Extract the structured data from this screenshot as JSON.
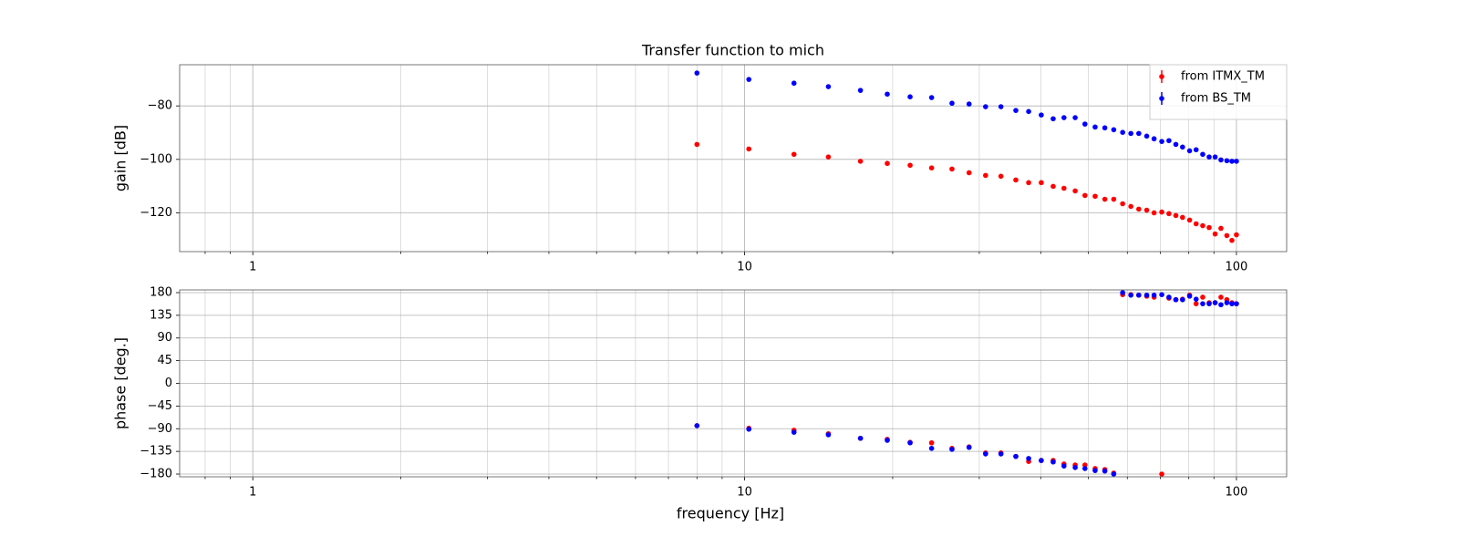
{
  "chart_data": [
    {
      "type": "scatter",
      "title": "Transfer function to mich",
      "ylabel": "gain [dB]",
      "log_x": true,
      "grid": true,
      "legend": "upper right",
      "xlim": [
        0.71,
        126.5
      ],
      "xticks": [
        1,
        10,
        100
      ],
      "xminorticks": [
        0.8,
        0.9,
        2,
        3,
        4,
        5,
        6,
        7,
        8,
        9,
        20,
        30,
        40,
        50,
        60,
        70,
        80,
        90
      ],
      "ylim": [
        -134.5,
        -64.6
      ],
      "yticks": [
        {
          "value": -120,
          "label": "−120"
        },
        {
          "value": -100,
          "label": "−100"
        },
        {
          "value": -80,
          "label": "−80"
        }
      ],
      "x": [
        8,
        10.2,
        12.6,
        14.8,
        17.2,
        19.5,
        21.7,
        24,
        26.4,
        28.6,
        30.9,
        33.2,
        35.6,
        37.8,
        40.1,
        42.4,
        44.6,
        47,
        49.2,
        51.6,
        54,
        56.3,
        58.7,
        61,
        63.3,
        65.7,
        68,
        70.5,
        72.9,
        75.3,
        77.7,
        80.3,
        82.8,
        85.4,
        88,
        90.5,
        93,
        95.6,
        97.9,
        100
      ],
      "series": [
        {
          "name": "from ITMX_TM",
          "color": "#ff0000",
          "values": [
            -94.4,
            -96.1,
            -98.1,
            -99.1,
            -100.7,
            -101.5,
            -102.2,
            -103.2,
            -103.6,
            -105.0,
            -106.0,
            -106.3,
            -107.7,
            -108.7,
            -108.7,
            -110.1,
            -110.8,
            -111.8,
            -113.5,
            -113.8,
            -114.9,
            -114.9,
            -116.6,
            -117.6,
            -118.6,
            -119.0,
            -120.0,
            -119.7,
            -120.3,
            -121.0,
            -121.7,
            -122.7,
            -124.1,
            -124.8,
            -125.5,
            -127.9,
            -125.8,
            -128.5,
            -130.3,
            -128.2
          ]
        },
        {
          "name": "from BS_TM",
          "color": "#0000ff",
          "values": [
            -67.7,
            -70.1,
            -71.5,
            -72.8,
            -74.2,
            -75.6,
            -76.6,
            -76.9,
            -79.0,
            -79.3,
            -80.3,
            -80.3,
            -81.7,
            -82.1,
            -83.4,
            -84.8,
            -84.4,
            -84.4,
            -86.8,
            -87.9,
            -88.2,
            -88.9,
            -89.9,
            -90.3,
            -90.3,
            -91.3,
            -92.3,
            -93.3,
            -93.0,
            -94.4,
            -95.4,
            -96.8,
            -96.4,
            -98.1,
            -99.1,
            -99.1,
            -100.2,
            -100.5,
            -100.7,
            -100.7
          ]
        }
      ]
    },
    {
      "type": "scatter",
      "xlabel": "frequency [Hz]",
      "ylabel": "phase [deg.]",
      "log_x": true,
      "grid": true,
      "xlim": [
        0.71,
        126.5
      ],
      "xticks": [
        1,
        10,
        100
      ],
      "xminorticks": [
        0.8,
        0.9,
        2,
        3,
        4,
        5,
        6,
        7,
        8,
        9,
        20,
        30,
        40,
        50,
        60,
        70,
        80,
        90
      ],
      "ylim": [
        -185.4,
        185.4
      ],
      "yticks": [
        {
          "value": -180,
          "label": "−180"
        },
        {
          "value": -135,
          "label": "−135"
        },
        {
          "value": -90,
          "label": "−90"
        },
        {
          "value": -45,
          "label": "−45"
        },
        0,
        45,
        90,
        135,
        180
      ],
      "x": [
        8,
        10.2,
        12.6,
        14.8,
        17.2,
        19.5,
        21.7,
        24,
        26.4,
        28.6,
        30.9,
        33.2,
        35.6,
        37.8,
        40.1,
        42.4,
        44.6,
        47,
        49.2,
        51.6,
        54,
        56.3,
        58.7,
        61,
        63.3,
        65.7,
        68,
        70.5,
        72.9,
        75.3,
        77.7,
        80.3,
        82.8,
        85.4,
        88,
        90.5,
        93,
        95.6,
        97.9,
        100
      ],
      "series": [
        {
          "color": "#ff0000",
          "values": [
            -84,
            -89,
            -93,
            -100,
            -109,
            -111,
            -117,
            -118,
            -129,
            -126,
            -138,
            -138,
            -145,
            -155,
            -153,
            -153,
            -160,
            -162,
            -162,
            -169,
            -171,
            -178,
            176,
            176,
            175,
            173,
            171,
            -180,
            169,
            166,
            167,
            175,
            158,
            171,
            160,
            160,
            171,
            166,
            160,
            158
          ]
        },
        {
          "color": "#0000ff",
          "values": [
            -84,
            -91,
            -97,
            -102,
            -109,
            -113,
            -118,
            -129,
            -131,
            -127,
            -140,
            -140,
            -145,
            -149,
            -153,
            -156,
            -164,
            -167,
            -169,
            -173,
            -174,
            -180,
            180,
            175,
            175,
            175,
            175,
            176,
            171,
            166,
            166,
            173,
            167,
            158,
            158,
            160,
            156,
            160,
            158,
            158
          ]
        }
      ]
    }
  ]
}
